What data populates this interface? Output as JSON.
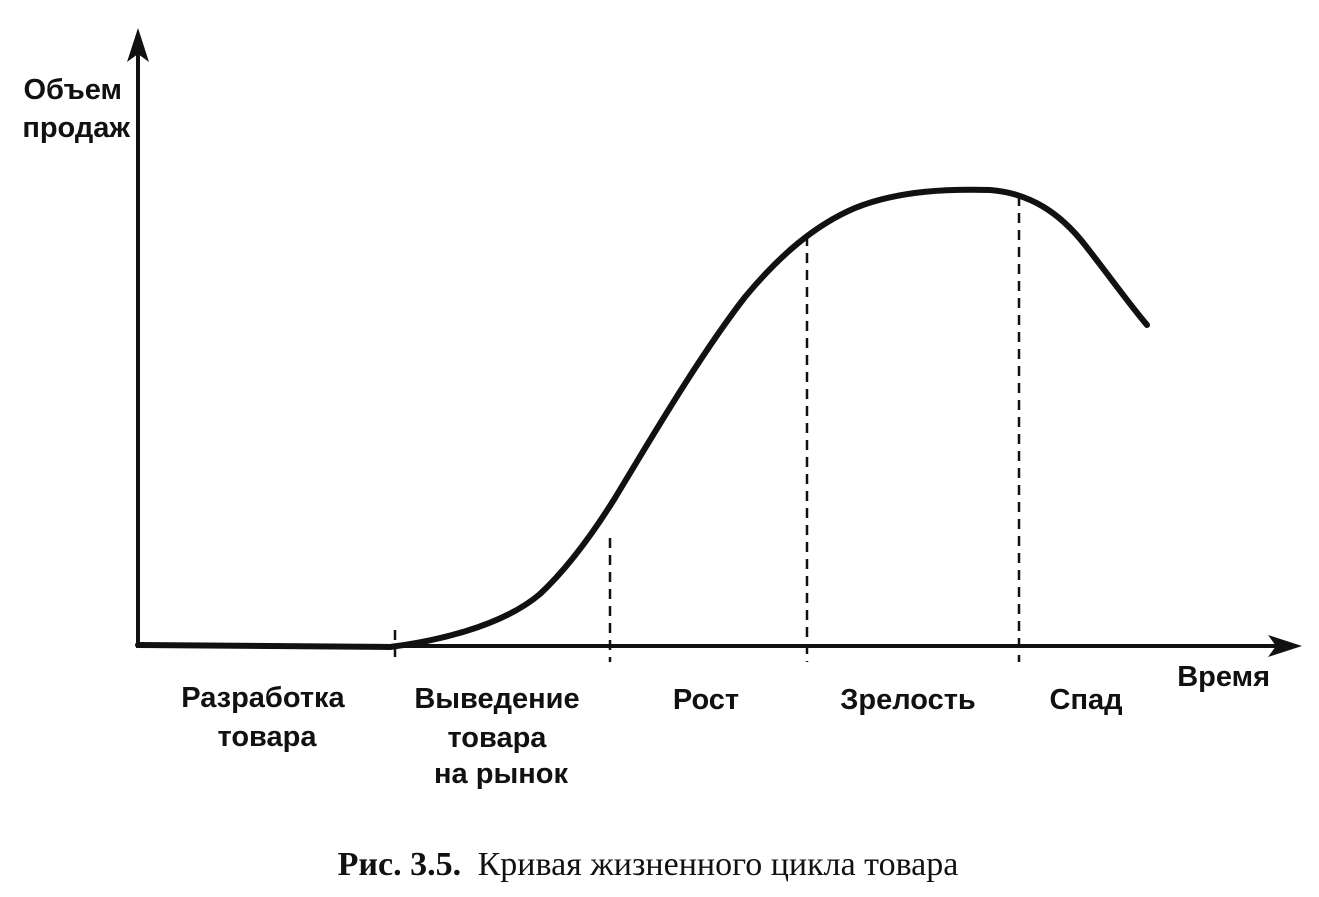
{
  "axes": {
    "y_label_lines": [
      "Объем",
      "продаж"
    ],
    "x_label": "Время"
  },
  "stages": [
    {
      "id": "development",
      "lines": [
        "Разработка",
        "товара"
      ]
    },
    {
      "id": "introduction",
      "lines": [
        "Выведение",
        "товара",
        "на рынок"
      ]
    },
    {
      "id": "growth",
      "lines": [
        "Рост"
      ]
    },
    {
      "id": "maturity",
      "lines": [
        "Зрелость"
      ]
    },
    {
      "id": "decline",
      "lines": [
        "Спад"
      ]
    }
  ],
  "caption": {
    "number": "Рис. 3.5.",
    "text": "Кривая жизненного цикла товара"
  },
  "colors": {
    "ink": "#111111",
    "paper": "#ffffff"
  }
}
